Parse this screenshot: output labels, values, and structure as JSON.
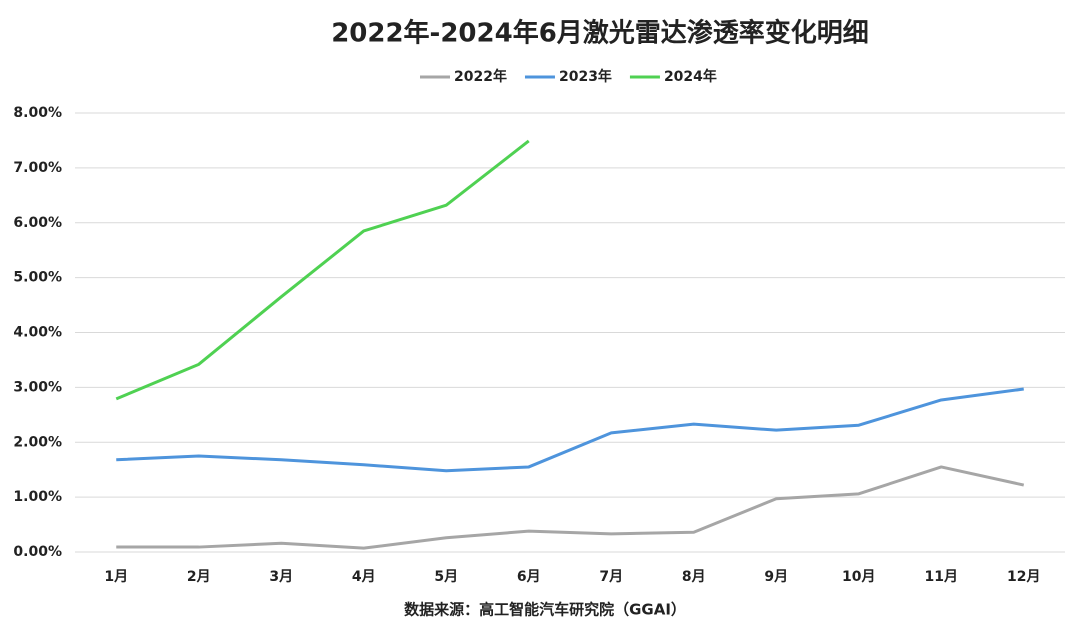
{
  "chart_data": {
    "type": "line",
    "title": "2022年-2024年6月激光雷达渗透率变化明细",
    "categories": [
      "1月",
      "2月",
      "3月",
      "4月",
      "5月",
      "6月",
      "7月",
      "8月",
      "9月",
      "10月",
      "11月",
      "12月"
    ],
    "series": [
      {
        "name": "2022年",
        "color": "#a6a6a6",
        "values": [
          0.09,
          0.09,
          0.16,
          0.07,
          0.26,
          0.38,
          0.33,
          0.36,
          0.97,
          1.06,
          1.55,
          1.22
        ]
      },
      {
        "name": "2023年",
        "color": "#4e94dc",
        "values": [
          1.68,
          1.75,
          1.68,
          1.59,
          1.48,
          1.55,
          2.17,
          2.33,
          2.22,
          2.31,
          2.77,
          2.97
        ]
      },
      {
        "name": "2024年",
        "color": "#4fd152",
        "values": [
          2.79,
          3.42,
          4.65,
          5.85,
          6.32,
          7.49,
          null,
          null,
          null,
          null,
          null,
          null
        ]
      }
    ],
    "ylim": [
      0,
      8
    ],
    "yticks": [
      {
        "value": 0,
        "label": "0.00%"
      },
      {
        "value": 1,
        "label": "1.00%"
      },
      {
        "value": 2,
        "label": "2.00%"
      },
      {
        "value": 3,
        "label": "3.00%"
      },
      {
        "value": 4,
        "label": "4.00%"
      },
      {
        "value": 5,
        "label": "5.00%"
      },
      {
        "value": 6,
        "label": "6.00%"
      },
      {
        "value": 7,
        "label": "7.00%"
      },
      {
        "value": 8,
        "label": "8.00%"
      }
    ],
    "grid": true,
    "legend": "top",
    "source": "数据来源：高工智能汽车研究院（GGAI）"
  }
}
